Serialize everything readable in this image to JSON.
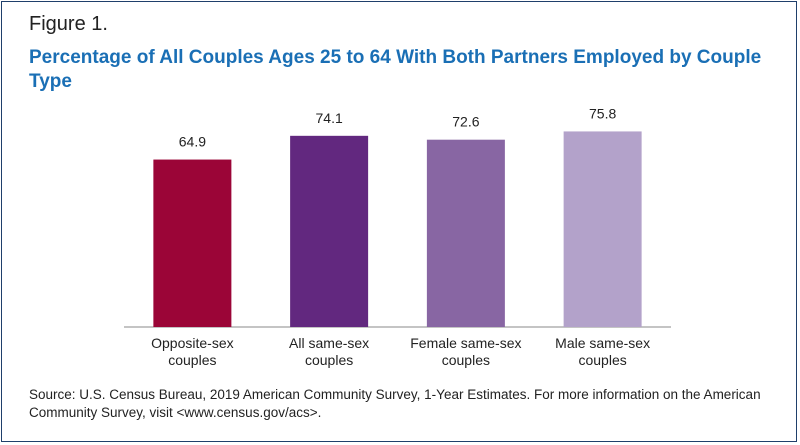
{
  "figure_label": "Figure 1.",
  "title": "Percentage of All Couples Ages 25 to 64 With Both Partners Employed by Couple Type",
  "source": "Source: U.S. Census Bureau, 2019 American Community Survey, 1-Year Estimates. For more information on the American Community Survey, visit <www.census.gov/acs>.",
  "chart_data": {
    "type": "bar",
    "title": "Percentage of All Couples Ages 25 to 64 With Both Partners Employed by Couple Type",
    "categories": [
      [
        "Opposite-sex",
        "couples"
      ],
      [
        "All same-sex",
        "couples"
      ],
      [
        "Female same-sex",
        "couples"
      ],
      [
        "Male same-sex",
        "couples"
      ]
    ],
    "values": [
      64.9,
      74.1,
      72.6,
      75.8
    ],
    "value_labels": [
      "64.9",
      "74.1",
      "72.6",
      "75.8"
    ],
    "colors": [
      "#9b0537",
      "#62287f",
      "#8866a3",
      "#b3a2ca"
    ],
    "ylim": [
      0,
      100
    ],
    "grid": false,
    "legend": "none"
  }
}
